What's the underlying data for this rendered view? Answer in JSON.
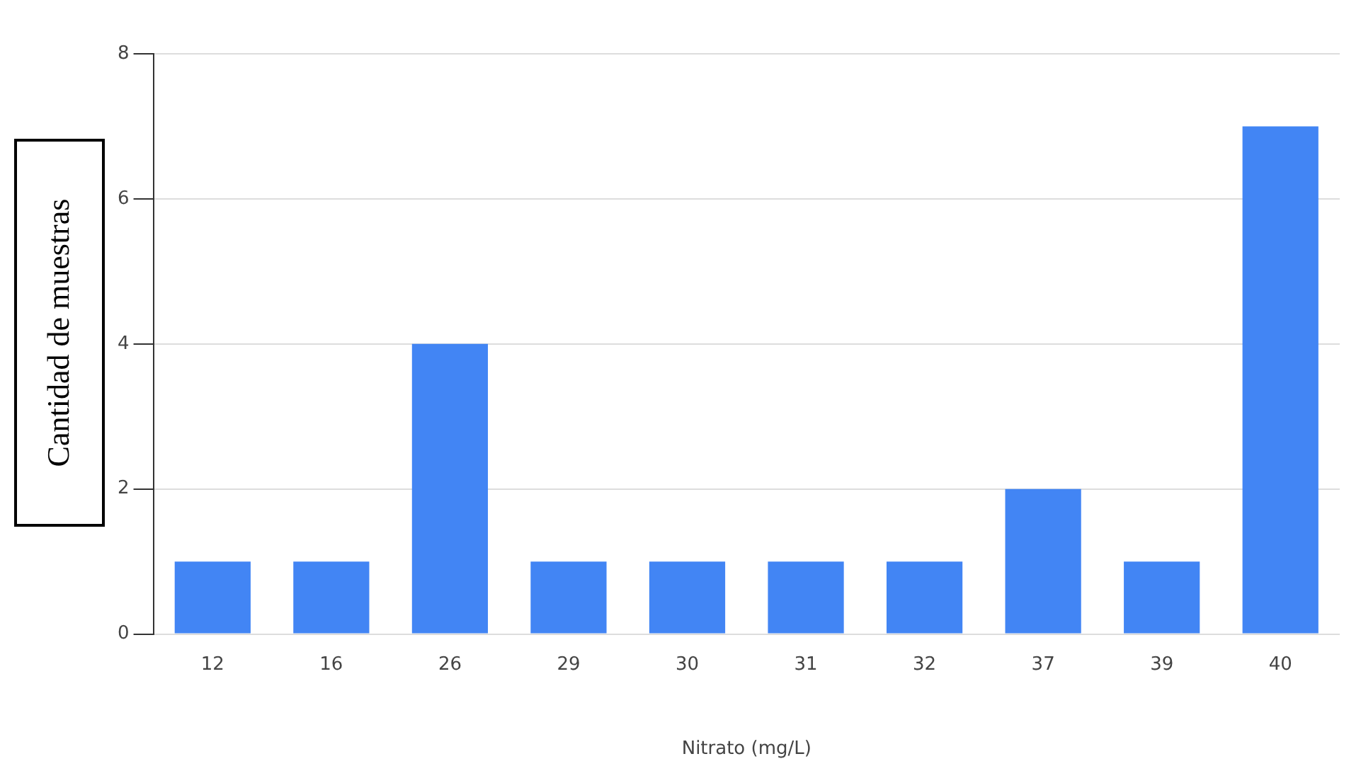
{
  "chart_data": {
    "type": "bar",
    "xlabel": "Nitrato (mg/L)",
    "ylabel": "Cantidad de muestras",
    "categories": [
      "12",
      "16",
      "26",
      "29",
      "30",
      "31",
      "32",
      "37",
      "39",
      "40"
    ],
    "values": [
      1,
      1,
      4,
      1,
      1,
      1,
      1,
      2,
      1,
      7
    ],
    "color": "#4285f4",
    "ylim": [
      0,
      8
    ],
    "yticks": [
      0,
      2,
      4,
      6,
      8
    ],
    "grid": "y",
    "legend": false
  }
}
